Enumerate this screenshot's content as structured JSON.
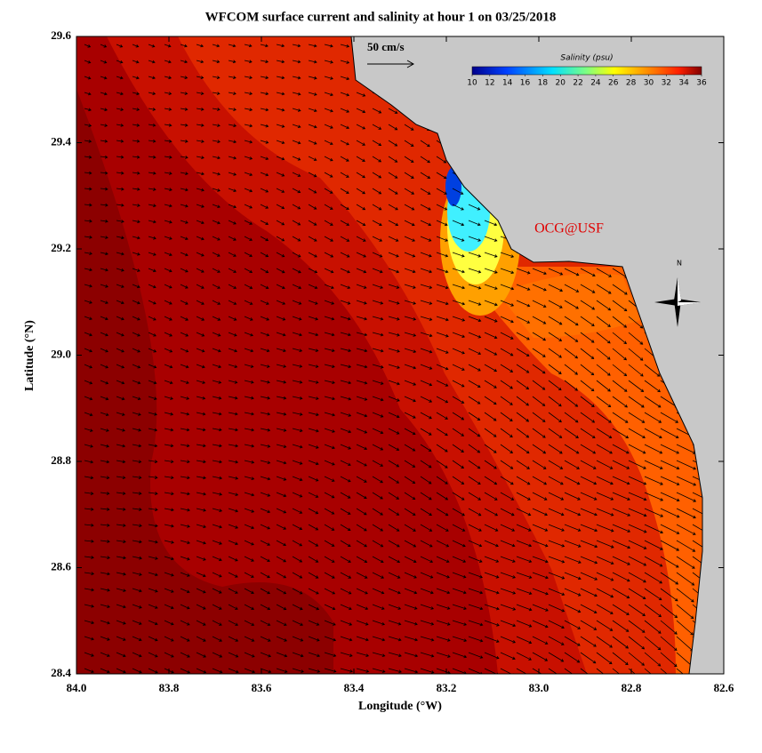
{
  "map": {
    "title": "WFCOM surface current and salinity at hour 1 on 03/25/2018",
    "xlabel": "Longitude (°W)",
    "ylabel": "Latitude (°N)",
    "xlim": [
      84.0,
      82.6
    ],
    "ylim": [
      28.4,
      29.6
    ],
    "xticks": [
      {
        "value": 84,
        "label": "84.0"
      },
      83.8,
      83.6,
      83.4,
      83.2,
      {
        "value": 83,
        "label": "83.0"
      },
      82.8,
      82.6
    ],
    "yticks": [
      29.6,
      29.4,
      29.2,
      {
        "value": 29,
        "label": "29.0"
      },
      28.8,
      28.6,
      28.4
    ],
    "colorbar": {
      "title": "Salinity (psu)",
      "lim": [
        10,
        36
      ],
      "ticks": [
        10,
        12,
        14,
        16,
        18,
        20,
        22,
        24,
        26,
        28,
        30,
        32,
        34,
        36
      ]
    },
    "scale_label": "50 cm/s",
    "credit": "OCG@USF",
    "compass_label": "N"
  }
}
